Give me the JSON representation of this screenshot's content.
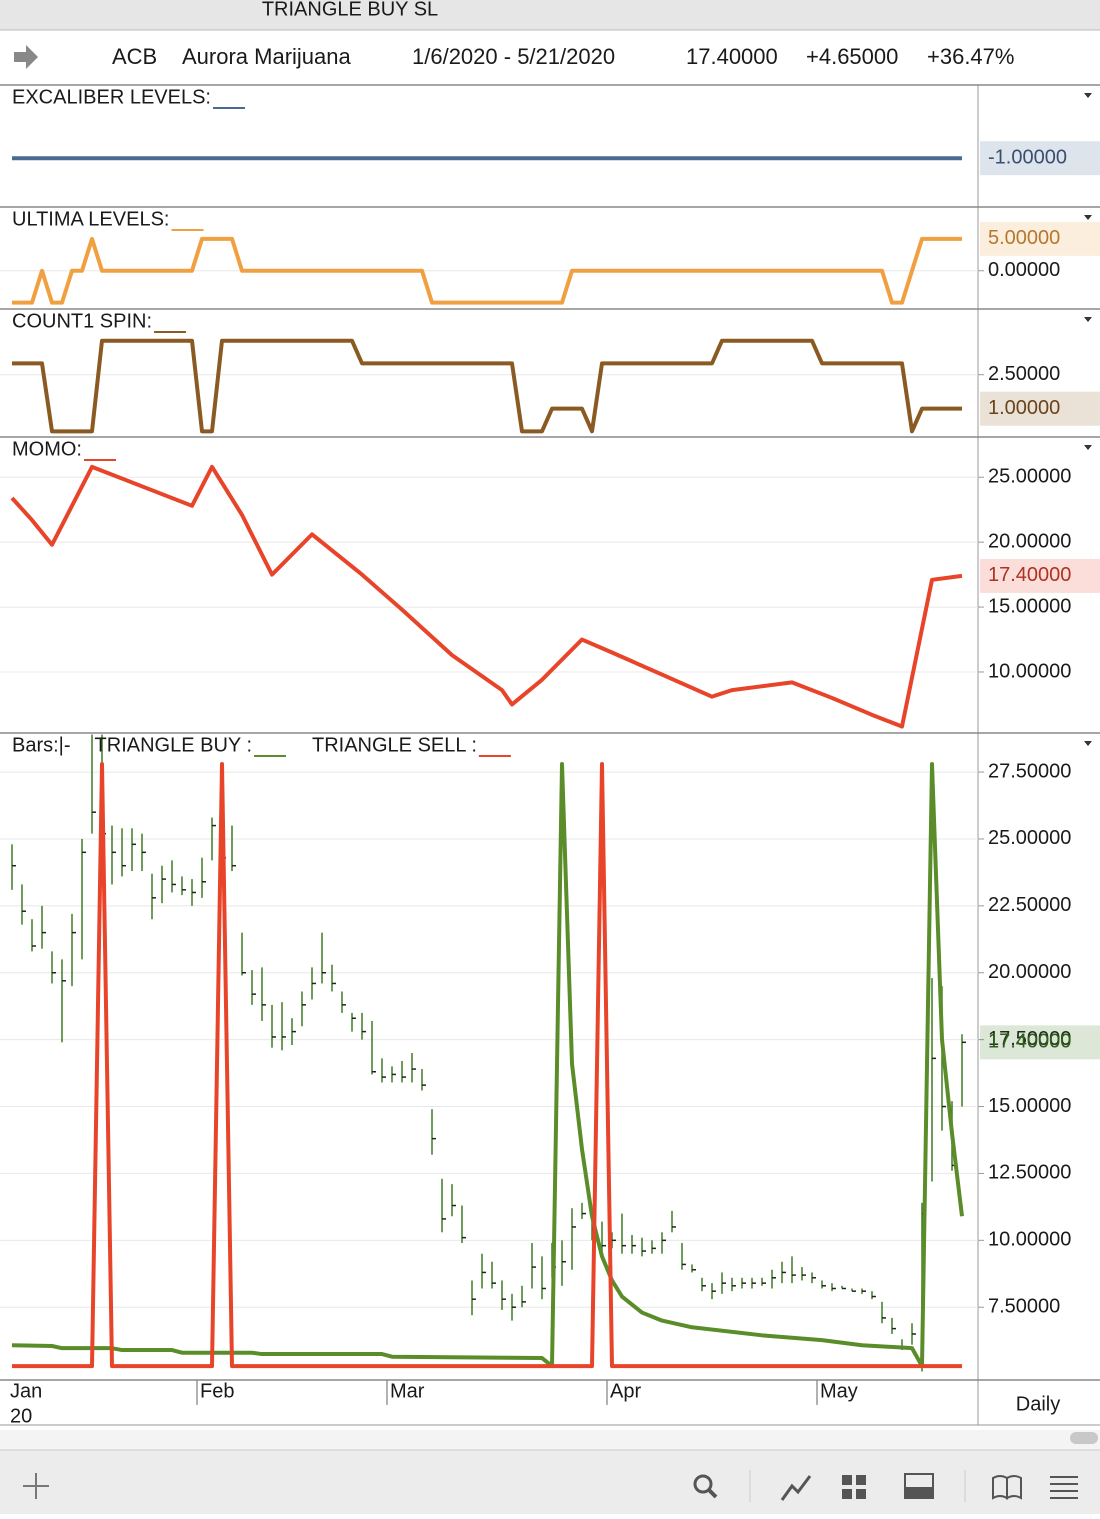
{
  "window_title": "TRIANGLE BUY SL",
  "header": {
    "symbol": "ACB",
    "name": "Aurora Marijuana",
    "date_range": "1/6/2020 - 5/21/2020",
    "last": "17.40000",
    "change": "+4.65000",
    "change_pct": "+36.47%"
  },
  "x_axis": {
    "ticks": [
      {
        "value": 0,
        "label": "Jan"
      },
      {
        "value": 19,
        "label": "Feb"
      },
      {
        "value": 38,
        "label": "Mar"
      },
      {
        "value": 60,
        "label": "Apr"
      },
      {
        "value": 81,
        "label": "May"
      }
    ],
    "year_label": "20",
    "period": "Daily"
  },
  "chart_data": [
    {
      "type": "line",
      "ylim": [
        -2,
        0.5
      ],
      "series": [
        {
          "name": "EXCALIBER LEVELS:",
          "color": "#4a6a96",
          "x": [
            0,
            95
          ],
          "values": [
            -1,
            -1
          ],
          "last_label": "-1.00000"
        }
      ]
    },
    {
      "type": "line",
      "ylim": [
        -6,
        10
      ],
      "yticks": [
        {
          "value": 0,
          "label": "0.00000"
        }
      ],
      "series": [
        {
          "name": "ULTIMA LEVELS:",
          "color": "#f0a040",
          "x": [
            0,
            2,
            3,
            4,
            5,
            6,
            7,
            8,
            9,
            18,
            19,
            22,
            23,
            41,
            42,
            55,
            56,
            87,
            88,
            89,
            91,
            95
          ],
          "values": [
            -5,
            -5,
            0,
            -5,
            -5,
            0,
            0,
            5,
            0,
            0,
            5,
            5,
            0,
            0,
            -5,
            -5,
            0,
            0,
            -5,
            -5,
            5,
            5
          ],
          "last_label": "5.00000"
        }
      ]
    },
    {
      "type": "line",
      "ylim": [
        -0.25,
        5.4
      ],
      "yticks": [
        {
          "value": 2.5,
          "label": "2.50000"
        }
      ],
      "series": [
        {
          "name": "COUNT1 SPIN:",
          "color": "#8b5a22",
          "x": [
            0,
            3,
            4,
            8,
            9,
            18,
            19,
            20,
            21,
            34,
            35,
            50,
            51,
            53,
            54,
            57,
            58,
            59,
            70,
            71,
            80,
            81,
            89,
            90,
            91,
            95
          ],
          "values": [
            3,
            3,
            0,
            0,
            4,
            4,
            0,
            0,
            4,
            4,
            3,
            3,
            0,
            0,
            1,
            1,
            0,
            3,
            3,
            4,
            4,
            3,
            3,
            0,
            1,
            1
          ],
          "last_label": "1.00000"
        }
      ]
    },
    {
      "type": "line",
      "ylim": [
        5.3,
        28.1
      ],
      "yticks": [
        {
          "value": 10,
          "label": "10.00000"
        },
        {
          "value": 15,
          "label": "15.00000"
        },
        {
          "value": 20,
          "label": "20.00000"
        },
        {
          "value": 25,
          "label": "25.00000"
        }
      ],
      "series": [
        {
          "name": "MOMO:",
          "color": "#e8442a",
          "x": [
            0,
            2,
            4,
            8,
            18,
            20,
            23,
            26,
            30,
            35,
            39,
            44,
            49,
            50,
            53,
            57,
            60,
            65,
            70,
            72,
            78,
            82,
            86,
            89,
            92,
            95
          ],
          "values": [
            23.4,
            21.7,
            19.8,
            25.8,
            22.8,
            25.8,
            22.1,
            17.5,
            20.6,
            17.5,
            14.8,
            11.3,
            8.6,
            7.5,
            9.4,
            12.5,
            11.5,
            9.8,
            8.1,
            8.6,
            9.2,
            8.0,
            6.7,
            5.8,
            17.1,
            17.4
          ],
          "last_label": "17.40000"
        }
      ]
    },
    {
      "type": "ohlc",
      "ylim": [
        4.78,
        28.96
      ],
      "yticks": [
        {
          "value": 7.5,
          "label": "7.50000"
        },
        {
          "value": 10,
          "label": "10.00000"
        },
        {
          "value": 12.5,
          "label": "12.50000"
        },
        {
          "value": 15,
          "label": "15.00000"
        },
        {
          "value": 17.5,
          "label": "17.50000"
        },
        {
          "value": 20,
          "label": "20.00000"
        },
        {
          "value": 22.5,
          "label": "22.50000"
        },
        {
          "value": 25,
          "label": "25.00000"
        },
        {
          "value": 27.5,
          "label": "27.50000"
        }
      ],
      "series": [
        {
          "name": "Bars:|-",
          "color": "#3d7a22",
          "high": [
            24.8,
            23.3,
            22.0,
            22.5,
            20.8,
            20.5,
            22.2,
            25.0,
            28.9,
            28.9,
            25.5,
            25.4,
            25.4,
            25.2,
            23.7,
            24.0,
            24.2,
            23.6,
            23.5,
            24.3,
            25.8,
            25.6,
            25.5,
            21.5,
            20.1,
            20.2,
            18.8,
            18.9,
            18.3,
            19.3,
            20.2,
            21.5,
            20.3,
            19.3,
            18.5,
            18.5,
            18.2,
            16.8,
            16.5,
            16.7,
            17.0,
            16.4,
            14.9,
            12.3,
            12.1,
            11.3,
            8.5,
            9.5,
            9.2,
            8.5,
            8.0,
            8.3,
            9.9,
            9.4,
            9.9,
            10.0,
            11.2,
            11.4,
            11.0,
            10.7,
            10.3,
            11.0,
            10.2,
            10.1,
            10.0,
            10.3,
            11.1,
            9.9,
            9.1,
            8.6,
            8.4,
            8.8,
            8.6,
            8.6,
            8.6,
            8.6,
            8.9,
            9.2,
            9.4,
            9.0,
            8.8,
            8.5,
            8.4,
            8.3,
            8.2,
            8.2,
            8.1,
            7.7,
            7.1,
            6.3,
            6.9,
            11.4,
            19.8,
            19.5,
            15.2,
            17.7
          ],
          "low": [
            23.1,
            21.8,
            20.8,
            20.9,
            19.6,
            17.4,
            19.5,
            20.5,
            25.2,
            24.8,
            23.3,
            23.6,
            23.8,
            23.8,
            22.0,
            22.6,
            23.0,
            22.9,
            22.5,
            22.8,
            24.2,
            24.0,
            23.8,
            19.9,
            18.8,
            18.2,
            17.2,
            17.1,
            17.3,
            18.0,
            19.0,
            19.6,
            19.3,
            18.5,
            17.8,
            17.5,
            16.2,
            15.9,
            15.9,
            15.9,
            15.9,
            15.6,
            13.2,
            10.3,
            10.9,
            9.9,
            7.2,
            8.2,
            8.2,
            7.4,
            7.0,
            7.5,
            8.2,
            7.8,
            8.6,
            8.3,
            8.9,
            10.8,
            10.0,
            9.6,
            9.7,
            9.5,
            9.5,
            9.4,
            9.5,
            9.5,
            10.3,
            8.9,
            8.8,
            8.1,
            7.8,
            8.0,
            8.1,
            8.2,
            8.2,
            8.3,
            8.2,
            8.4,
            8.4,
            8.5,
            8.4,
            8.2,
            8.1,
            8.2,
            8.1,
            8.0,
            7.8,
            6.9,
            6.5,
            5.9,
            6.1,
            5.1,
            12.2,
            14.1,
            12.6,
            15.0
          ],
          "close": [
            24.0,
            22.3,
            21.0,
            21.5,
            20.0,
            19.7,
            21.5,
            24.5,
            26.0,
            25.2,
            24.5,
            24.0,
            24.8,
            24.5,
            22.8,
            23.5,
            23.3,
            23.1,
            23.0,
            23.4,
            25.5,
            24.3,
            24.0,
            20.0,
            19.2,
            18.8,
            17.6,
            17.6,
            17.8,
            18.8,
            19.6,
            20.0,
            19.6,
            18.8,
            18.3,
            17.8,
            16.3,
            16.1,
            16.2,
            16.1,
            16.4,
            15.8,
            13.8,
            10.8,
            11.3,
            10.1,
            7.8,
            8.8,
            8.4,
            7.8,
            7.5,
            7.7,
            9.0,
            8.2,
            9.0,
            9.2,
            10.5,
            11.0,
            10.4,
            9.8,
            10.0,
            9.8,
            9.8,
            9.6,
            9.7,
            10.0,
            10.5,
            9.1,
            8.9,
            8.3,
            8.1,
            8.4,
            8.3,
            8.4,
            8.4,
            8.4,
            8.6,
            8.8,
            8.7,
            8.7,
            8.6,
            8.3,
            8.2,
            8.2,
            8.1,
            8.1,
            7.9,
            7.1,
            6.7,
            6.0,
            6.5,
            11.0,
            16.8,
            15.0,
            12.8,
            17.4
          ],
          "last_label": "17.40000"
        },
        {
          "name": "TRIANGLE BUY :",
          "color": "#5b8c2a",
          "x": [
            0,
            4,
            5,
            10,
            11,
            16,
            17,
            24,
            25,
            37,
            38,
            53,
            54,
            55,
            56,
            57,
            58,
            59,
            60,
            61,
            62,
            63,
            65,
            68,
            75,
            81,
            85,
            90,
            91,
            92,
            93,
            94,
            95
          ],
          "values": [
            6.08,
            6.05,
            5.97,
            5.97,
            5.9,
            5.9,
            5.8,
            5.8,
            5.75,
            5.75,
            5.65,
            5.6,
            5.3,
            27.8,
            16.6,
            13.4,
            10.9,
            9.4,
            8.5,
            7.9,
            7.6,
            7.3,
            7.0,
            6.75,
            6.45,
            6.27,
            6.08,
            5.97,
            5.3,
            27.8,
            17.5,
            14.0,
            10.9
          ]
        },
        {
          "name": "TRIANGLE SELL :",
          "color": "#e8442a",
          "x": [
            0,
            8,
            9,
            10,
            20,
            21,
            22,
            58,
            59,
            60,
            95
          ],
          "values": [
            5.3,
            5.3,
            27.8,
            5.3,
            5.3,
            27.8,
            5.3,
            5.3,
            27.8,
            5.3,
            5.3
          ]
        }
      ]
    }
  ]
}
